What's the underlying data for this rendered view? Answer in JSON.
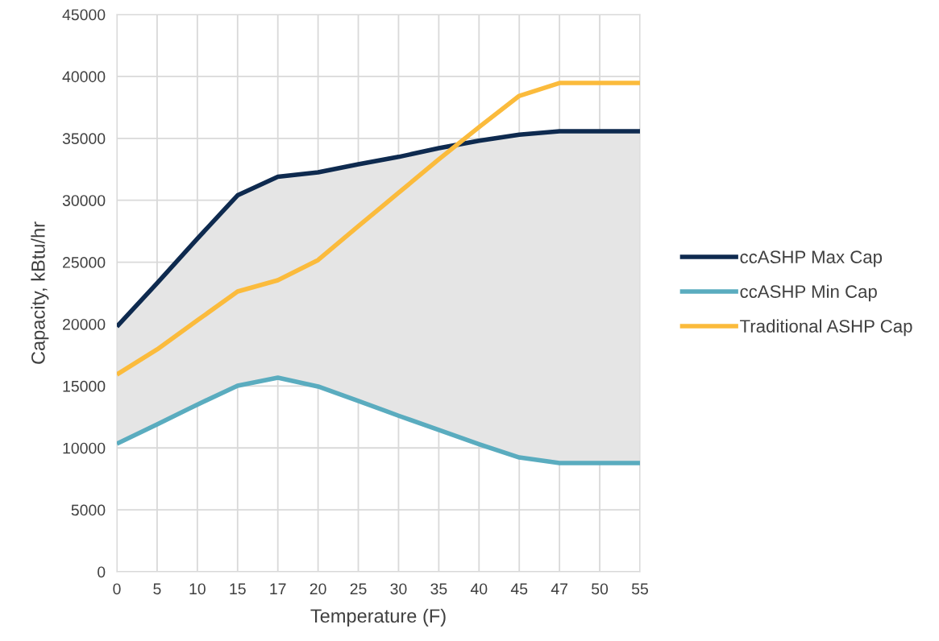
{
  "chart_data": {
    "type": "line",
    "xlabel": "Temperature (F)",
    "ylabel": "Capacity, kBtu/hr",
    "categories": [
      "0",
      "5",
      "10",
      "15",
      "17",
      "20",
      "25",
      "30",
      "35",
      "40",
      "45",
      "47",
      "50",
      "55"
    ],
    "series": [
      {
        "name": "ccASHP Max Cap",
        "color": "#0e2a4f",
        "values": [
          19800,
          23300,
          26900,
          30400,
          31900,
          32250,
          32900,
          33500,
          34200,
          34800,
          35300,
          35570,
          35570,
          35570
        ],
        "lower": [
          10340,
          11900,
          13500,
          15020,
          15670,
          14960,
          13800,
          12600,
          11450,
          10300,
          9230,
          8780,
          8780,
          8780
        ],
        "upper": [
          19800,
          23300,
          26900,
          30400,
          31900,
          32250,
          32900,
          33500,
          34200,
          34800,
          35300,
          35570,
          35570,
          35570
        ]
      },
      {
        "name": "ccASHP Min Cap",
        "color": "#5aacbf",
        "values": [
          10340,
          11900,
          13500,
          15020,
          15670,
          14960,
          13800,
          12600,
          11450,
          10300,
          9230,
          8780,
          8780,
          8780
        ]
      },
      {
        "name": "Traditional ASHP Cap",
        "color": "#fbbb3c",
        "values": [
          15930,
          17950,
          20300,
          22630,
          23540,
          25170,
          27900,
          30600,
          33300,
          35900,
          38430,
          39470,
          39470,
          39470
        ]
      }
    ],
    "ylim": [
      0,
      45000
    ],
    "yticks": [
      0,
      5000,
      10000,
      15000,
      20000,
      25000,
      30000,
      35000,
      40000,
      45000
    ],
    "grid": true,
    "legend": "right"
  }
}
